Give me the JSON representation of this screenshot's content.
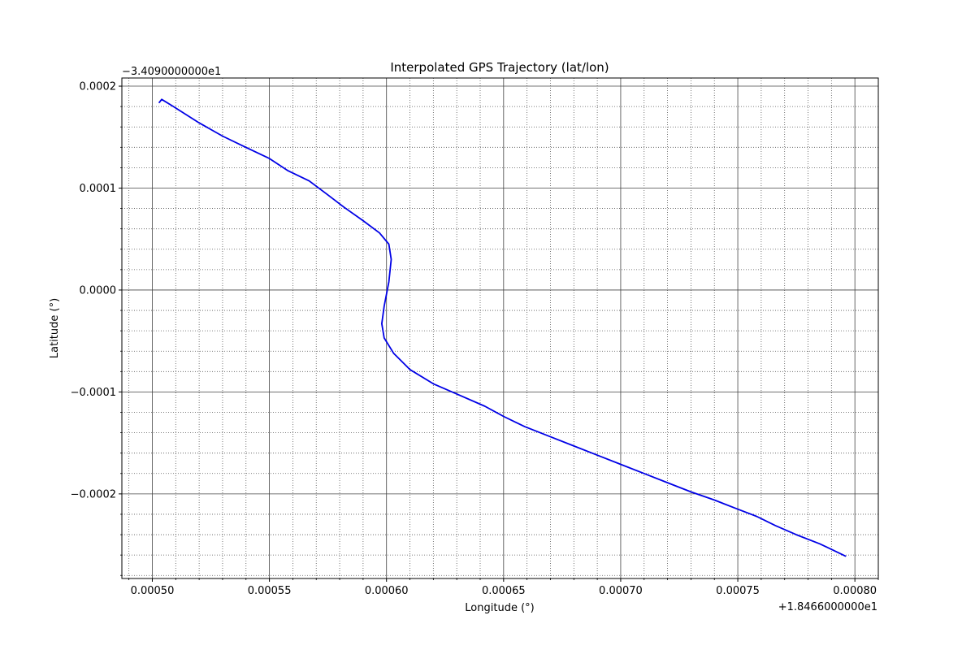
{
  "chart_data": {
    "type": "line",
    "title": "Interpolated GPS Trajectory (lat/lon)",
    "xlabel": "Longitude (°)",
    "ylabel": "Latitude (°)",
    "x_offset_label": "+1.8466000000e1",
    "y_offset_label": "−3.4090000000e1",
    "xlim": [
      0.000487,
      0.00081
    ],
    "ylim": [
      -0.000283,
      0.000208
    ],
    "x_ticks": [
      0.0005,
      0.00055,
      0.0006,
      0.00065,
      0.0007,
      0.00075,
      0.0008
    ],
    "x_tick_labels": [
      "0.00050",
      "0.00055",
      "0.00060",
      "0.00065",
      "0.00070",
      "0.00075",
      "0.00080"
    ],
    "y_ticks": [
      0.0002,
      0.0001,
      0.0,
      -0.0001,
      -0.0002
    ],
    "y_tick_labels": [
      "0.0002",
      "0.0001",
      "0.0000",
      "−0.0001",
      "−0.0002"
    ],
    "x_minor_step": 1e-05,
    "y_minor_step": 2e-05,
    "grid": "major solid, minor dotted",
    "series": [
      {
        "color": "#0000e6",
        "x": [
          0.000503,
          0.000504,
          0.000509,
          0.00052,
          0.00053,
          0.000539,
          0.00055,
          0.000558,
          0.000567,
          0.000574,
          0.000582,
          0.00059,
          0.000597,
          0.000601,
          0.000602,
          0.000601,
          0.000599,
          0.000598,
          0.000599,
          0.000603,
          0.00061,
          0.00062,
          0.000631,
          0.000642,
          0.00065,
          0.000659,
          0.00067,
          0.00068,
          0.00069,
          0.0007,
          0.00071,
          0.00072,
          0.00073,
          0.00074,
          0.00075,
          0.000758,
          0.000766,
          0.000775,
          0.000785,
          0.000796
        ],
        "y": [
          0.000184,
          0.000187,
          0.00018,
          0.000164,
          0.000151,
          0.000141,
          0.000129,
          0.000117,
          0.000107,
          9.5e-05,
          8.1e-05,
          6.8e-05,
          5.6e-05,
          4.5e-05,
          3e-05,
          8e-06,
          -1.6e-05,
          -3.3e-05,
          -4.7e-05,
          -6.2e-05,
          -7.8e-05,
          -9.2e-05,
          -0.000103,
          -0.000114,
          -0.000124,
          -0.000134,
          -0.000144,
          -0.000153,
          -0.000162,
          -0.000171,
          -0.00018,
          -0.000189,
          -0.000198,
          -0.000206,
          -0.000215,
          -0.000222,
          -0.000231,
          -0.00024,
          -0.000249,
          -0.000261
        ]
      }
    ]
  }
}
